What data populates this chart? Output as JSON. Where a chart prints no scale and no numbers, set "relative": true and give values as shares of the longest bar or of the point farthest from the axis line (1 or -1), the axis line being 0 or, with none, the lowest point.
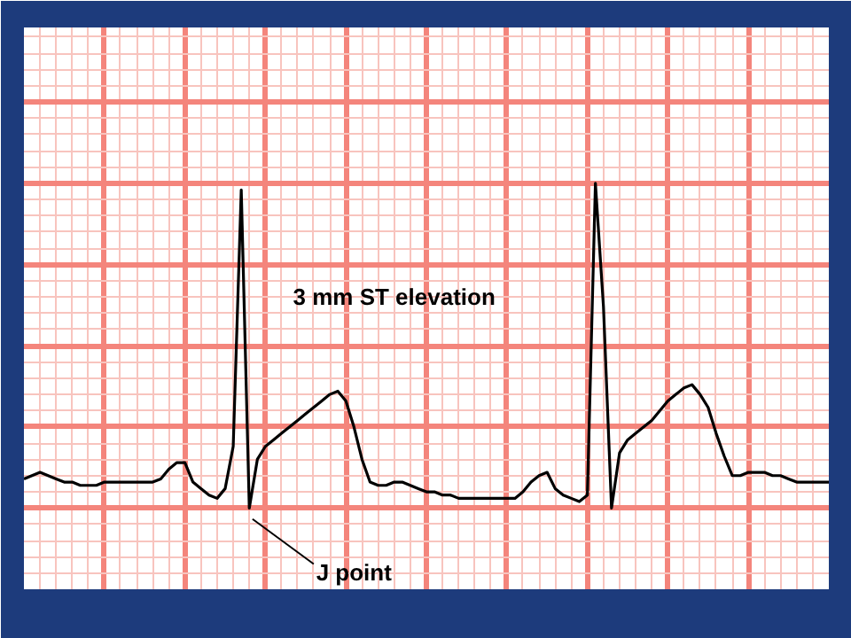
{
  "chart_data": {
    "type": "line",
    "relative": true,
    "categories": [
      null,
      null,
      null,
      null,
      null,
      null,
      null,
      null,
      null,
      null,
      null,
      null,
      null,
      null,
      null,
      null,
      null,
      null,
      null,
      null,
      null,
      null,
      null,
      null,
      null,
      null,
      null,
      null,
      null,
      null,
      null,
      null,
      null,
      null,
      null,
      null,
      null,
      null,
      null,
      null,
      null,
      null,
      null,
      null,
      null,
      null,
      null,
      null,
      null,
      null,
      null,
      null,
      null,
      null,
      null,
      null,
      null,
      null,
      null,
      null,
      null,
      null,
      null,
      null,
      null,
      null,
      null,
      null,
      null,
      null,
      null,
      null,
      null,
      null,
      null,
      null,
      null,
      null,
      null,
      null,
      null,
      null,
      null,
      null,
      null,
      null,
      null,
      null,
      null,
      null,
      null,
      null,
      null,
      null,
      null,
      null,
      null,
      null,
      null,
      null,
      null
    ],
    "series": [
      {
        "color": "#000000",
        "values": [
          0.09,
          0.1,
          0.11,
          0.1,
          0.09,
          0.08,
          0.08,
          0.07,
          0.07,
          0.07,
          0.08,
          0.08,
          0.08,
          0.08,
          0.08,
          0.08,
          0.08,
          0.09,
          0.12,
          0.14,
          0.14,
          0.08,
          0.06,
          0.04,
          0.03,
          0.06,
          0.19,
          0.98,
          0.0,
          0.15,
          0.19,
          0.21,
          0.23,
          0.25,
          0.27,
          0.29,
          0.31,
          0.33,
          0.35,
          0.36,
          0.33,
          0.25,
          0.15,
          0.08,
          0.07,
          0.07,
          0.08,
          0.08,
          0.07,
          0.06,
          0.05,
          0.05,
          0.04,
          0.04,
          0.03,
          0.03,
          0.03,
          0.03,
          0.03,
          0.03,
          0.03,
          0.03,
          0.05,
          0.08,
          0.1,
          0.11,
          0.06,
          0.04,
          0.03,
          0.02,
          0.04,
          1.0,
          0.62,
          0.0,
          0.17,
          0.21,
          0.23,
          0.25,
          0.27,
          0.3,
          0.33,
          0.35,
          0.37,
          0.38,
          0.35,
          0.31,
          0.23,
          0.16,
          0.1,
          0.1,
          0.11,
          0.11,
          0.11,
          0.1,
          0.1,
          0.09,
          0.08,
          0.08,
          0.08,
          0.08,
          0.08
        ]
      }
    ],
    "grid": true,
    "line_style": "solid",
    "marker": "none",
    "annotations": [
      "3 mm ST elevation",
      "J point"
    ]
  }
}
